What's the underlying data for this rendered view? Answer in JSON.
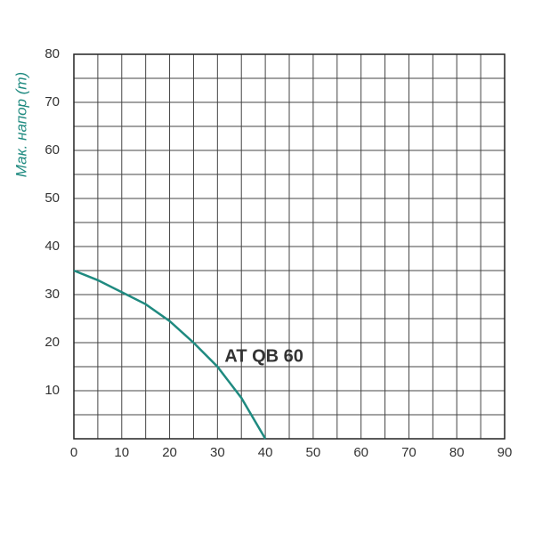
{
  "chart_data": {
    "type": "line",
    "y_label": "Мак. напор (m)",
    "annotation": "AT QB 60",
    "x": [
      0,
      5,
      10,
      15,
      20,
      25,
      30,
      35,
      40
    ],
    "series": [
      {
        "name": "AT QB 60",
        "color": "#1f8a80",
        "values": [
          35,
          33,
          30.5,
          28,
          24.5,
          20,
          15,
          8.5,
          0
        ]
      }
    ],
    "xlim": [
      0,
      90
    ],
    "xticks": [
      0,
      10,
      20,
      30,
      40,
      50,
      60,
      70,
      80,
      90
    ],
    "ylim": [
      0,
      80
    ],
    "yticks": [
      10,
      20,
      30,
      40,
      50,
      60,
      70,
      80
    ],
    "grid": true,
    "y_label_color": "#1f8a80"
  }
}
